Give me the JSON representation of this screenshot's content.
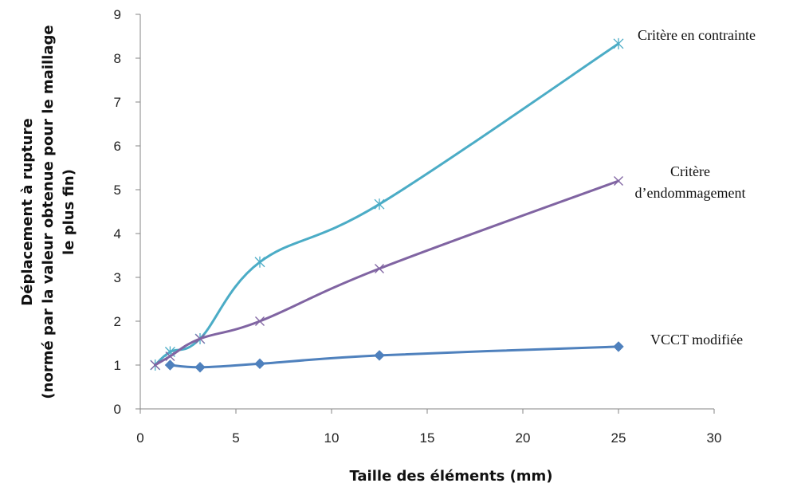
{
  "chart_data": {
    "type": "line",
    "xlabel": "Taille des éléments (mm)",
    "ylabel": [
      "Déplacement à rupture",
      "(normé par la valeur obtenue pour le maillage",
      "le plus fin)"
    ],
    "xlim": [
      0,
      30
    ],
    "ylim": [
      0,
      9
    ],
    "xticks": [
      0,
      5,
      10,
      15,
      20,
      25,
      30
    ],
    "yticks": [
      0,
      1,
      2,
      3,
      4,
      5,
      6,
      7,
      8,
      9
    ],
    "grid": false,
    "legend": "none",
    "series": [
      {
        "name": "Critère en contrainte",
        "color": "#4bacc6",
        "marker": "star",
        "x": [
          0.78,
          1.56,
          3.125,
          6.25,
          12.5,
          25
        ],
        "y": [
          1.0,
          1.3,
          1.6,
          3.35,
          4.67,
          8.33
        ]
      },
      {
        "name": "Critère d’endommagement",
        "color": "#8064a2",
        "marker": "x",
        "x": [
          0.78,
          1.56,
          3.125,
          6.25,
          12.5,
          25
        ],
        "y": [
          1.0,
          1.2,
          1.6,
          2.0,
          3.2,
          5.2
        ]
      },
      {
        "name": "VCCT modifiée",
        "color": "#4f81bd",
        "marker": "diamond",
        "x": [
          1.56,
          3.125,
          6.25,
          12.5,
          25
        ],
        "y": [
          1.0,
          0.95,
          1.03,
          1.22,
          1.42
        ]
      }
    ],
    "annotations": [
      {
        "lines": [
          "Critère en contrainte"
        ]
      },
      {
        "lines": [
          "Critère",
          "d’endommagement"
        ]
      },
      {
        "lines": [
          "VCCT modifiée"
        ]
      }
    ]
  }
}
